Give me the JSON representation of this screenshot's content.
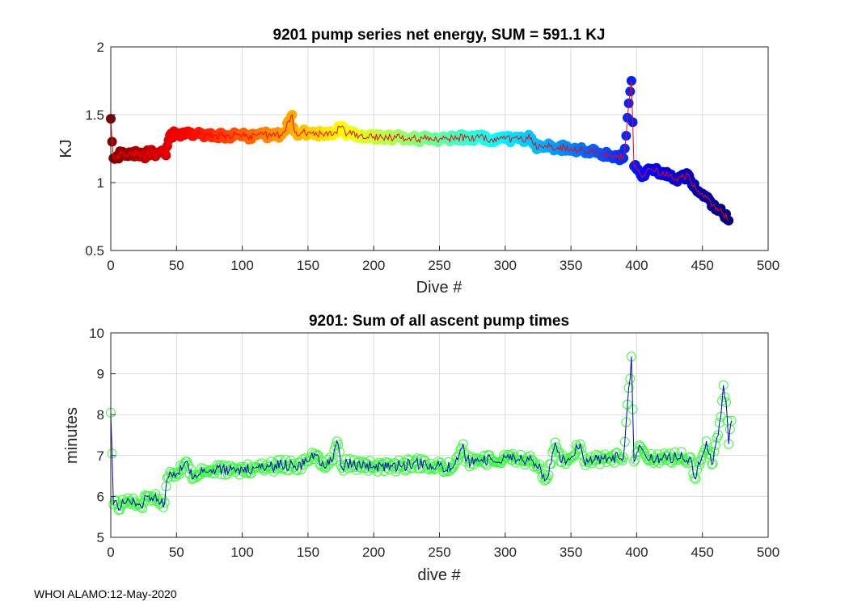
{
  "footer": "WHOI ALAMO:12-May-2020",
  "chart_data": [
    {
      "type": "scatter",
      "title": "9201 pump series net energy, SUM = 591.1 KJ",
      "xlabel": "Dive #",
      "ylabel": "KJ",
      "xlim": [
        0,
        500
      ],
      "ylim": [
        0.5,
        2
      ],
      "xticks": [
        0,
        50,
        100,
        150,
        200,
        250,
        300,
        350,
        400,
        450,
        500
      ],
      "yticks": [
        0.5,
        1,
        1.5,
        2
      ],
      "ytick_labels": [
        "0.5",
        "1",
        "1.5",
        "2"
      ],
      "grid": true,
      "line_color": "#ff0000",
      "marker": "filled circle, colored by dive # (jet colormap)",
      "series_points": [
        [
          0,
          1.47
        ],
        [
          2,
          1.18
        ],
        [
          5,
          1.2
        ],
        [
          10,
          1.21
        ],
        [
          15,
          1.22
        ],
        [
          20,
          1.21
        ],
        [
          25,
          1.2
        ],
        [
          30,
          1.22
        ],
        [
          35,
          1.21
        ],
        [
          40,
          1.22
        ],
        [
          42,
          1.2
        ],
        [
          45,
          1.35
        ],
        [
          50,
          1.36
        ],
        [
          55,
          1.37
        ],
        [
          60,
          1.36
        ],
        [
          70,
          1.36
        ],
        [
          80,
          1.35
        ],
        [
          90,
          1.35
        ],
        [
          100,
          1.34
        ],
        [
          110,
          1.35
        ],
        [
          120,
          1.35
        ],
        [
          130,
          1.35
        ],
        [
          138,
          1.5
        ],
        [
          140,
          1.37
        ],
        [
          150,
          1.37
        ],
        [
          160,
          1.36
        ],
        [
          170,
          1.37
        ],
        [
          175,
          1.41
        ],
        [
          180,
          1.36
        ],
        [
          190,
          1.35
        ],
        [
          200,
          1.34
        ],
        [
          210,
          1.33
        ],
        [
          220,
          1.33
        ],
        [
          230,
          1.33
        ],
        [
          240,
          1.32
        ],
        [
          250,
          1.32
        ],
        [
          260,
          1.33
        ],
        [
          270,
          1.33
        ],
        [
          280,
          1.33
        ],
        [
          290,
          1.32
        ],
        [
          300,
          1.32
        ],
        [
          310,
          1.32
        ],
        [
          320,
          1.33
        ],
        [
          325,
          1.25
        ],
        [
          330,
          1.27
        ],
        [
          340,
          1.26
        ],
        [
          350,
          1.25
        ],
        [
          360,
          1.24
        ],
        [
          370,
          1.22
        ],
        [
          380,
          1.2
        ],
        [
          390,
          1.18
        ],
        [
          396,
          1.75
        ],
        [
          398,
          1.12
        ],
        [
          405,
          1.05
        ],
        [
          410,
          1.1
        ],
        [
          420,
          1.08
        ],
        [
          430,
          1.03
        ],
        [
          440,
          1.05
        ],
        [
          445,
          0.95
        ],
        [
          450,
          0.92
        ],
        [
          455,
          0.88
        ],
        [
          460,
          0.8
        ],
        [
          465,
          0.78
        ],
        [
          470,
          0.72
        ]
      ]
    },
    {
      "type": "line",
      "title": "9201: Sum of all ascent pump times",
      "xlabel": "dive #",
      "ylabel": "minutes",
      "xlim": [
        0,
        500
      ],
      "ylim": [
        5,
        10
      ],
      "xticks": [
        0,
        50,
        100,
        150,
        200,
        250,
        300,
        350,
        400,
        450,
        500
      ],
      "yticks": [
        5,
        6,
        7,
        8,
        9,
        10
      ],
      "grid": true,
      "line_color": "#0000cc",
      "marker": "open circle",
      "marker_color": "#33ff33",
      "series_points": [
        [
          0,
          8.05
        ],
        [
          2,
          5.8
        ],
        [
          5,
          5.8
        ],
        [
          10,
          5.82
        ],
        [
          15,
          5.85
        ],
        [
          20,
          5.83
        ],
        [
          25,
          5.85
        ],
        [
          28,
          6.0
        ],
        [
          33,
          6.0
        ],
        [
          38,
          5.85
        ],
        [
          41,
          5.85
        ],
        [
          43,
          6.45
        ],
        [
          45,
          6.6
        ],
        [
          50,
          6.55
        ],
        [
          58,
          6.85
        ],
        [
          60,
          6.55
        ],
        [
          70,
          6.6
        ],
        [
          80,
          6.65
        ],
        [
          90,
          6.62
        ],
        [
          100,
          6.68
        ],
        [
          110,
          6.7
        ],
        [
          120,
          6.72
        ],
        [
          130,
          6.78
        ],
        [
          140,
          6.75
        ],
        [
          150,
          6.85
        ],
        [
          155,
          7.05
        ],
        [
          160,
          6.75
        ],
        [
          168,
          6.85
        ],
        [
          172,
          7.35
        ],
        [
          176,
          6.7
        ],
        [
          180,
          6.8
        ],
        [
          190,
          6.72
        ],
        [
          200,
          6.75
        ],
        [
          210,
          6.7
        ],
        [
          220,
          6.75
        ],
        [
          230,
          6.8
        ],
        [
          240,
          6.78
        ],
        [
          250,
          6.75
        ],
        [
          260,
          6.7
        ],
        [
          266,
          7.15
        ],
        [
          268,
          7.28
        ],
        [
          270,
          6.85
        ],
        [
          280,
          6.85
        ],
        [
          290,
          6.9
        ],
        [
          300,
          6.95
        ],
        [
          310,
          6.9
        ],
        [
          320,
          6.9
        ],
        [
          332,
          6.45
        ],
        [
          338,
          7.32
        ],
        [
          342,
          6.85
        ],
        [
          350,
          6.95
        ],
        [
          357,
          7.28
        ],
        [
          360,
          6.85
        ],
        [
          370,
          6.9
        ],
        [
          380,
          6.95
        ],
        [
          390,
          6.95
        ],
        [
          396,
          9.42
        ],
        [
          398,
          6.85
        ],
        [
          402,
          7.25
        ],
        [
          410,
          6.9
        ],
        [
          420,
          6.95
        ],
        [
          430,
          6.95
        ],
        [
          440,
          6.95
        ],
        [
          444,
          6.45
        ],
        [
          450,
          7.0
        ],
        [
          453,
          7.35
        ],
        [
          458,
          6.8
        ],
        [
          462,
          7.5
        ],
        [
          464,
          7.95
        ],
        [
          466,
          8.72
        ],
        [
          468,
          8.3
        ],
        [
          470,
          7.28
        ],
        [
          472,
          7.85
        ]
      ]
    }
  ]
}
